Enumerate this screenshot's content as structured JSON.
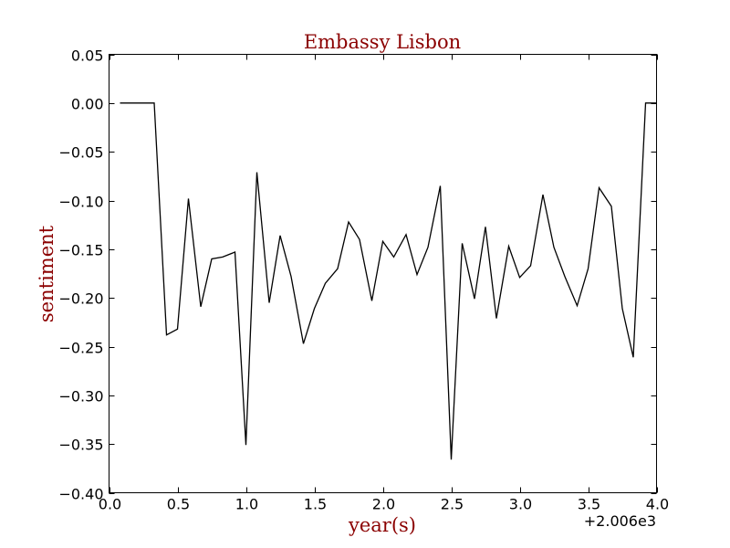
{
  "chart_data": {
    "type": "line",
    "title": "Embassy Lisbon",
    "xlabel": "year(s)",
    "ylabel": "sentiment",
    "x_offset_label": "+2.006e3",
    "xlim": [
      0.0,
      4.0
    ],
    "ylim": [
      -0.4,
      0.05
    ],
    "xticks": [
      0.0,
      0.5,
      1.0,
      1.5,
      2.0,
      2.5,
      3.0,
      3.5,
      4.0
    ],
    "xtick_labels": [
      "0.0",
      "0.5",
      "1.0",
      "1.5",
      "2.0",
      "2.5",
      "3.0",
      "3.5",
      "4.0"
    ],
    "yticks": [
      0.05,
      0.0,
      -0.05,
      -0.1,
      -0.15,
      -0.2,
      -0.25,
      -0.3,
      -0.35,
      -0.4
    ],
    "ytick_labels": [
      "0.05",
      "0.00",
      "−0.05",
      "−0.10",
      "−0.15",
      "−0.20",
      "−0.25",
      "−0.30",
      "−0.35",
      "−0.40"
    ],
    "grid": false,
    "line_color": "#000000",
    "series": [
      {
        "x": [
          0.08,
          0.17,
          0.25,
          0.33,
          0.42,
          0.5,
          0.58,
          0.67,
          0.75,
          0.83,
          0.92,
          1.0,
          1.08,
          1.17,
          1.25,
          1.33,
          1.42,
          1.5,
          1.58,
          1.67,
          1.75,
          1.83,
          1.92,
          2.0,
          2.08,
          2.17,
          2.25,
          2.33,
          2.42,
          2.5,
          2.58,
          2.67,
          2.75,
          2.83,
          2.92,
          3.0,
          3.08,
          3.17,
          3.25,
          3.33,
          3.42,
          3.5,
          3.58,
          3.67,
          3.75,
          3.83,
          3.92,
          4.0
        ],
        "values": [
          0.0,
          0.0,
          0.0,
          0.0,
          -0.238,
          -0.232,
          -0.098,
          -0.209,
          -0.16,
          -0.158,
          -0.153,
          -0.351,
          -0.071,
          -0.205,
          -0.136,
          -0.178,
          -0.247,
          -0.211,
          -0.185,
          -0.17,
          -0.122,
          -0.14,
          -0.203,
          -0.142,
          -0.158,
          -0.135,
          -0.176,
          -0.148,
          -0.085,
          -0.366,
          -0.144,
          -0.201,
          -0.127,
          -0.221,
          -0.147,
          -0.179,
          -0.167,
          -0.094,
          -0.148,
          -0.178,
          -0.208,
          -0.17,
          -0.087,
          -0.106,
          -0.211,
          -0.261,
          0.0,
          0.0
        ]
      }
    ]
  }
}
